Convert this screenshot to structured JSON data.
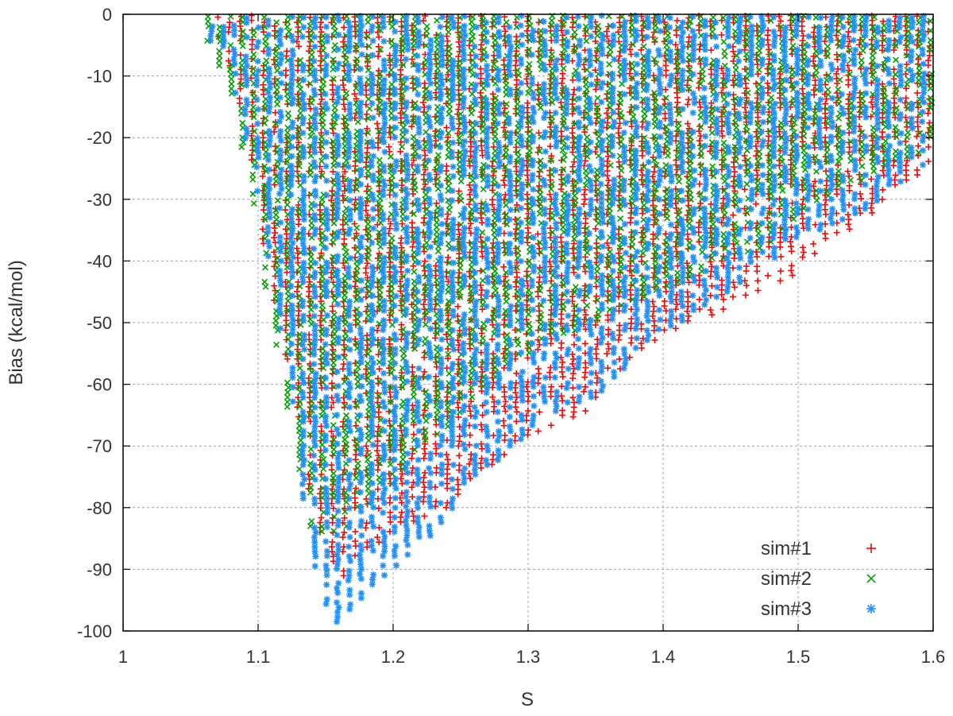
{
  "chart_data": {
    "type": "scatter",
    "title": "",
    "xlabel": "S",
    "ylabel": "Bias (kcal/mol)",
    "xlim": [
      1,
      1.6
    ],
    "ylim": [
      -100,
      0
    ],
    "x_ticks": [
      "1",
      "1.1",
      "1.2",
      "1.3",
      "1.4",
      "1.5",
      "1.6"
    ],
    "y_ticks": [
      "0",
      "-10",
      "-20",
      "-30",
      "-40",
      "-50",
      "-60",
      "-70",
      "-80",
      "-90",
      "-100"
    ],
    "grid": true,
    "legend_position": "bottom-right",
    "series": [
      {
        "name": "sim#1",
        "marker": "plus",
        "color": "#ff0000",
        "lower_envelope": [
          [
            1.07,
            -5
          ],
          [
            1.08,
            -10
          ],
          [
            1.09,
            -18
          ],
          [
            1.1,
            -32
          ],
          [
            1.11,
            -45
          ],
          [
            1.12,
            -55
          ],
          [
            1.13,
            -68
          ],
          [
            1.14,
            -80
          ],
          [
            1.15,
            -87
          ],
          [
            1.16,
            -92
          ],
          [
            1.17,
            -90
          ],
          [
            1.18,
            -88
          ],
          [
            1.19,
            -86
          ],
          [
            1.2,
            -84
          ],
          [
            1.22,
            -82
          ],
          [
            1.24,
            -80
          ],
          [
            1.26,
            -76
          ],
          [
            1.28,
            -72
          ],
          [
            1.3,
            -69
          ],
          [
            1.32,
            -67
          ],
          [
            1.35,
            -64
          ],
          [
            1.37,
            -57
          ],
          [
            1.4,
            -52
          ],
          [
            1.43,
            -50
          ],
          [
            1.45,
            -47
          ],
          [
            1.48,
            -44
          ],
          [
            1.5,
            -42
          ],
          [
            1.52,
            -37
          ],
          [
            1.55,
            -34
          ],
          [
            1.57,
            -30
          ],
          [
            1.59,
            -27
          ],
          [
            1.6,
            -24
          ]
        ]
      },
      {
        "name": "sim#2",
        "marker": "cross",
        "color": "#00a000",
        "lower_envelope": [
          [
            1.06,
            -3
          ],
          [
            1.07,
            -8
          ],
          [
            1.08,
            -14
          ],
          [
            1.09,
            -24
          ],
          [
            1.1,
            -38
          ],
          [
            1.11,
            -50
          ],
          [
            1.12,
            -62
          ],
          [
            1.13,
            -76
          ],
          [
            1.14,
            -84
          ],
          [
            1.15,
            -85
          ],
          [
            1.16,
            -84
          ],
          [
            1.18,
            -80
          ],
          [
            1.2,
            -76
          ],
          [
            1.22,
            -70
          ],
          [
            1.24,
            -68
          ],
          [
            1.26,
            -62
          ],
          [
            1.28,
            -58
          ],
          [
            1.3,
            -55
          ],
          [
            1.32,
            -53
          ],
          [
            1.35,
            -50
          ],
          [
            1.37,
            -47
          ],
          [
            1.4,
            -45
          ],
          [
            1.43,
            -42
          ],
          [
            1.45,
            -40
          ],
          [
            1.48,
            -37
          ],
          [
            1.5,
            -33
          ],
          [
            1.52,
            -30
          ],
          [
            1.55,
            -27
          ],
          [
            1.57,
            -24
          ],
          [
            1.6,
            -22
          ]
        ]
      },
      {
        "name": "sim#3",
        "marker": "star",
        "color": "#1e90ff",
        "lower_envelope": [
          [
            1.06,
            -3
          ],
          [
            1.07,
            -7
          ],
          [
            1.08,
            -12
          ],
          [
            1.09,
            -20
          ],
          [
            1.1,
            -30
          ],
          [
            1.11,
            -42
          ],
          [
            1.12,
            -56
          ],
          [
            1.13,
            -74
          ],
          [
            1.14,
            -88
          ],
          [
            1.15,
            -96
          ],
          [
            1.16,
            -99
          ],
          [
            1.17,
            -97
          ],
          [
            1.18,
            -94
          ],
          [
            1.19,
            -92
          ],
          [
            1.2,
            -90
          ],
          [
            1.22,
            -86
          ],
          [
            1.24,
            -82
          ],
          [
            1.26,
            -76
          ],
          [
            1.28,
            -72
          ],
          [
            1.3,
            -68
          ],
          [
            1.32,
            -65
          ],
          [
            1.35,
            -62
          ],
          [
            1.37,
            -58
          ],
          [
            1.4,
            -52
          ],
          [
            1.43,
            -48
          ],
          [
            1.45,
            -45
          ],
          [
            1.48,
            -40
          ],
          [
            1.5,
            -37
          ],
          [
            1.52,
            -35
          ],
          [
            1.55,
            -32
          ],
          [
            1.57,
            -28
          ],
          [
            1.6,
            -24
          ]
        ]
      }
    ]
  }
}
